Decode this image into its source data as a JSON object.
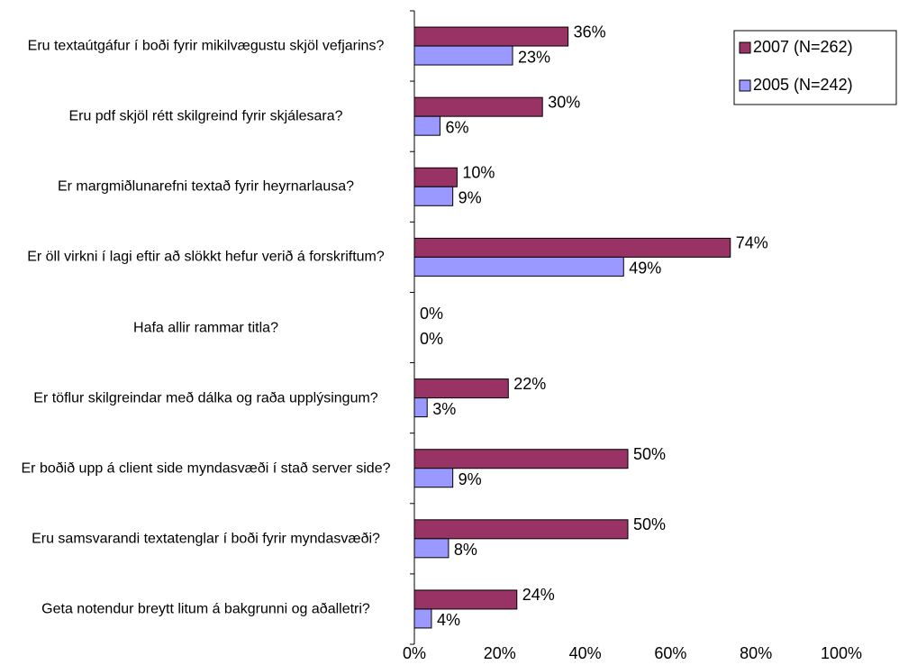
{
  "chart_data": {
    "type": "hbar",
    "categories": [
      "Eru textaútgáfur í boði fyrir mikilvægustu skjöl vefjarins?",
      "Eru pdf skjöl rétt skilgreind fyrir skjálesara?",
      "Er margmiðlunarefni textað fyrir heyrnarlausa?",
      "Er öll virkni í lagi eftir að slökkt hefur verið á forskriftum?",
      "Hafa allir rammar titla?",
      "Er töflur skilgreindar með dálka og raða upplýsingum?",
      "Er boðið upp á client side myndasvæði í stað server side?",
      "Eru samsvarandi textatenglar í boði fyrir myndasvæði?",
      "Geta notendur breytt litum á bakgrunni og aðalletri?"
    ],
    "series": [
      {
        "name": "2007 (N=262)",
        "color": "#993366",
        "values": [
          36,
          30,
          10,
          74,
          0,
          22,
          50,
          50,
          24
        ],
        "value_labels": [
          "36%",
          "30%",
          "10%",
          "74%",
          "0%",
          "22%",
          "50%",
          "50%",
          "24%"
        ]
      },
      {
        "name": "2005 (N=242)",
        "color": "#9999ff",
        "values": [
          23,
          6,
          9,
          49,
          0,
          3,
          9,
          8,
          4
        ],
        "value_labels": [
          "23%",
          "6%",
          "9%",
          "49%",
          "0%",
          "3%",
          "9%",
          "8%",
          "4%"
        ]
      }
    ],
    "xlim": [
      0,
      100
    ],
    "xticks": [
      {
        "value": 0,
        "label": "0%"
      },
      {
        "value": 20,
        "label": "20%"
      },
      {
        "value": 40,
        "label": "40%"
      },
      {
        "value": 60,
        "label": "60%"
      },
      {
        "value": 80,
        "label": "80%"
      },
      {
        "value": 100,
        "label": "100%"
      }
    ],
    "legend": "upper right"
  }
}
